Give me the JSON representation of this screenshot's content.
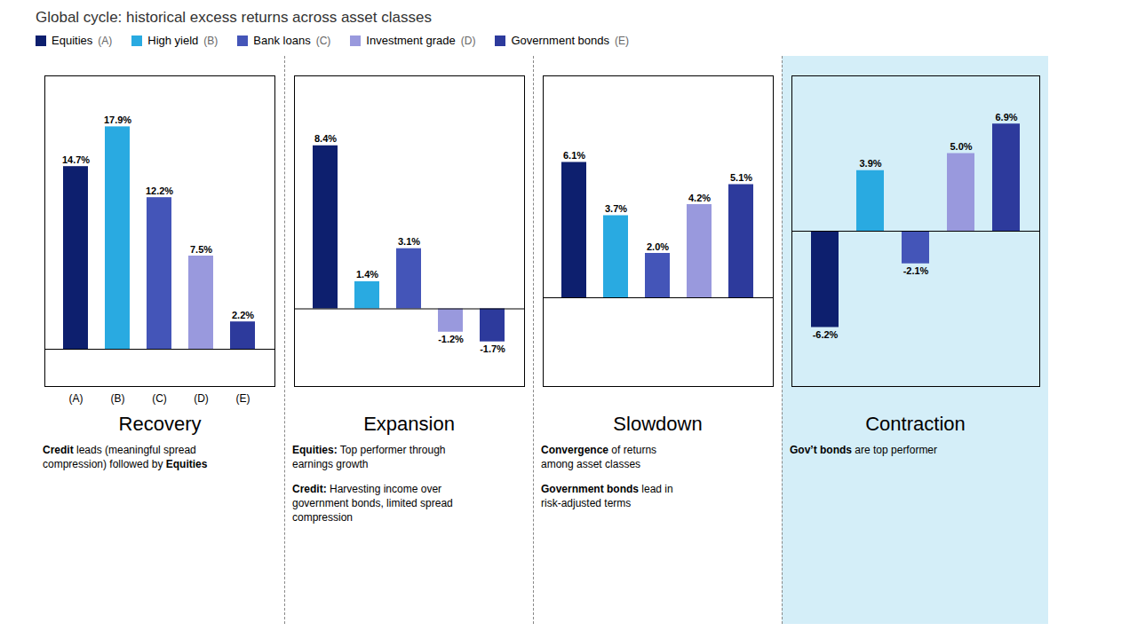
{
  "chart_data": {
    "type": "bar",
    "title": "Global cycle: historical excess returns across asset classes",
    "data_labels": true,
    "legend": "top",
    "series": [
      {
        "name": "Equities",
        "label": "(A)",
        "color": "#0d1f6e",
        "values": [
          14.7,
          8.4,
          6.1,
          -6.2
        ],
        "value_labels": [
          "14.7%",
          "8.4%",
          "6.1%",
          "-6.2%"
        ]
      },
      {
        "name": "High yield",
        "label": "(B)",
        "color": "#29aae1",
        "values": [
          17.9,
          1.4,
          3.7,
          3.9
        ],
        "value_labels": [
          "17.9%",
          "1.4%",
          "3.7%",
          "3.9%"
        ]
      },
      {
        "name": "Bank loans",
        "label": "(C)",
        "color": "#4455b8",
        "values": [
          12.2,
          3.1,
          2.0,
          -2.1
        ],
        "value_labels": [
          "12.2%",
          "3.1%",
          "2.0%",
          "-2.1%"
        ]
      },
      {
        "name": "Investment grade",
        "label": "(D)",
        "color": "#9999dd",
        "values": [
          7.5,
          -1.2,
          4.2,
          5.0
        ],
        "value_labels": [
          "7.5%",
          "-1.2%",
          "4.2%",
          "5.0%"
        ]
      },
      {
        "name": "Government bonds",
        "label": "(E)",
        "color": "#2d3a9c",
        "values": [
          2.2,
          -1.7,
          5.1,
          6.9
        ],
        "value_labels": [
          "2.2%",
          "-1.7%",
          "5.1%",
          "6.9%"
        ]
      }
    ],
    "panels": [
      {
        "title": "Recovery",
        "ylim": [
          -3,
          22
        ],
        "tick_labels": "x",
        "annotations": [
          [
            [
              {
                "text": "Credit",
                "bold": true
              },
              {
                "text": " leads (meaningful spread"
              }
            ],
            [
              {
                "text": "compression) followed by "
              },
              {
                "text": "Equities",
                "bold": true
              }
            ]
          ]
        ]
      },
      {
        "title": "Expansion",
        "ylim": [
          -4,
          12
        ],
        "tick_labels": false,
        "annotations": [
          [
            [
              {
                "text": "Equities:",
                "bold": true
              },
              {
                "text": " Top performer through"
              }
            ],
            [
              {
                "text": "earnings growth"
              }
            ]
          ],
          [
            [
              {
                "text": "Credit:",
                "bold": true
              },
              {
                "text": " Harvesting income over"
              }
            ],
            [
              {
                "text": "government bonds, limited spread"
              }
            ],
            [
              {
                "text": "compression"
              }
            ]
          ]
        ]
      },
      {
        "title": "Slowdown",
        "ylim": [
          -4,
          10
        ],
        "tick_labels": false,
        "annotations": [
          [
            [
              {
                "text": "Convergence",
                "bold": true
              },
              {
                "text": " of returns"
              }
            ],
            [
              {
                "text": "among asset classes"
              }
            ]
          ],
          [
            [
              {
                "text": "Government bonds",
                "bold": true
              },
              {
                "text": " lead in"
              }
            ],
            [
              {
                "text": "risk-adjusted terms"
              }
            ]
          ]
        ]
      },
      {
        "title": "Contraction",
        "ylim": [
          -10,
          10
        ],
        "tick_labels": false,
        "background": "#d4eef8",
        "annotations": [
          [
            [
              {
                "text": "Gov’t bonds",
                "bold": true
              },
              {
                "text": " are top performer"
              }
            ]
          ]
        ]
      }
    ]
  }
}
